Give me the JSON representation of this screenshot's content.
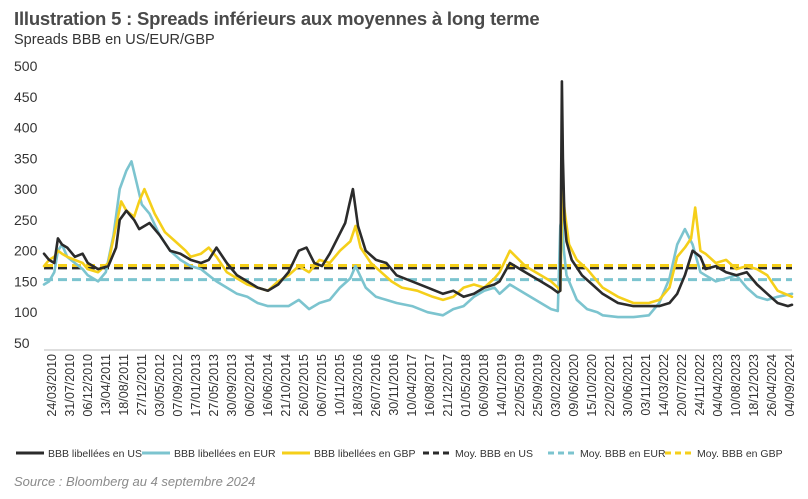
{
  "header": {
    "title": "Illustration 5 : Spreads inférieurs aux moyennes à long terme",
    "subtitle": "Spreads BBB en US/EUR/GBP"
  },
  "footer": {
    "source": "Source : Bloomberg au 4 septembre 2024"
  },
  "colors": {
    "us": "#2b2b2b",
    "eur": "#7cc4cf",
    "gbp": "#f5cf1a",
    "axis": "#888888"
  },
  "chart_data": {
    "type": "line",
    "title": "Illustration 5 : Spreads inférieurs aux moyennes à long terme",
    "subtitle": "Spreads BBB en US/EUR/GBP",
    "xlabel": "",
    "ylabel": "",
    "ylim": [
      50,
      500
    ],
    "y_ticks": [
      50,
      100,
      150,
      200,
      250,
      300,
      350,
      400,
      450,
      500
    ],
    "grid": false,
    "legend_position": "bottom",
    "x_start": 2010.15,
    "x_end": 2024.68,
    "x_tick_labels": [
      "24/03/2010",
      "31/07/2010",
      "06/12/2010",
      "13/04/2011",
      "18/08/2011",
      "27/12/2011",
      "03/05/2012",
      "07/09/2012",
      "17/01/2013",
      "27/05/2013",
      "30/09/2013",
      "06/02/2014",
      "16/06/2014",
      "21/10/2014",
      "26/02/2015",
      "06/07/2015",
      "10/11/2015",
      "18/03/2016",
      "26/07/2016",
      "30/11/2016",
      "10/04/2017",
      "16/08/2017",
      "21/12/2017",
      "01/05/2018",
      "06/09/2018",
      "14/01/2019",
      "22/05/2019",
      "25/09/2019",
      "03/02/2020",
      "09/06/2020",
      "15/10/2020",
      "22/02/2021",
      "30/06/2021",
      "03/11/2021",
      "14/03/2022",
      "20/07/2022",
      "24/11/2022",
      "04/04/2023",
      "10/08/2023",
      "18/12/2023",
      "26/04/2024",
      "04/09/2024"
    ],
    "series": [
      {
        "name": "BBB libellées en US",
        "style": "solid",
        "color": "#2b2b2b",
        "x": [
          2010.15,
          2010.25,
          2010.35,
          2010.42,
          2010.5,
          2010.6,
          2010.75,
          2010.9,
          2011.0,
          2011.2,
          2011.4,
          2011.55,
          2011.62,
          2011.75,
          2011.9,
          2012.0,
          2012.2,
          2012.4,
          2012.6,
          2012.8,
          2013.0,
          2013.2,
          2013.35,
          2013.5,
          2013.7,
          2013.9,
          2014.1,
          2014.3,
          2014.5,
          2014.7,
          2014.9,
          2015.1,
          2015.25,
          2015.4,
          2015.55,
          2015.7,
          2015.85,
          2016.0,
          2016.08,
          2016.15,
          2016.25,
          2016.4,
          2016.6,
          2016.8,
          2017.0,
          2017.3,
          2017.6,
          2017.9,
          2018.1,
          2018.3,
          2018.5,
          2018.7,
          2018.9,
          2019.0,
          2019.2,
          2019.5,
          2019.8,
          2020.0,
          2020.13,
          2020.18,
          2020.21,
          2020.23,
          2020.26,
          2020.3,
          2020.4,
          2020.6,
          2020.8,
          2021.0,
          2021.3,
          2021.6,
          2021.9,
          2022.1,
          2022.3,
          2022.45,
          2022.6,
          2022.75,
          2022.9,
          2023.0,
          2023.2,
          2023.4,
          2023.6,
          2023.8,
          2024.0,
          2024.2,
          2024.4,
          2024.6,
          2024.68
        ],
        "y": [
          195,
          185,
          180,
          220,
          210,
          205,
          190,
          195,
          180,
          170,
          175,
          205,
          250,
          265,
          250,
          235,
          245,
          225,
          200,
          195,
          185,
          180,
          185,
          205,
          180,
          160,
          150,
          140,
          135,
          145,
          165,
          200,
          205,
          180,
          175,
          195,
          220,
          245,
          275,
          300,
          240,
          200,
          185,
          180,
          160,
          150,
          140,
          130,
          135,
          125,
          130,
          140,
          145,
          150,
          180,
          165,
          150,
          140,
          132,
          135,
          475,
          350,
          250,
          215,
          185,
          160,
          145,
          130,
          115,
          110,
          110,
          110,
          115,
          130,
          160,
          200,
          190,
          170,
          175,
          165,
          160,
          165,
          145,
          130,
          115,
          110,
          112
        ]
      },
      {
        "name": "BBB libellées en EUR",
        "style": "solid",
        "color": "#7cc4cf",
        "x": [
          2010.15,
          2010.25,
          2010.35,
          2010.42,
          2010.5,
          2010.6,
          2010.75,
          2010.9,
          2011.0,
          2011.2,
          2011.35,
          2011.5,
          2011.62,
          2011.75,
          2011.85,
          2011.95,
          2012.05,
          2012.2,
          2012.4,
          2012.6,
          2012.8,
          2013.0,
          2013.2,
          2013.35,
          2013.5,
          2013.7,
          2013.9,
          2014.1,
          2014.3,
          2014.5,
          2014.7,
          2014.9,
          2015.1,
          2015.3,
          2015.5,
          2015.7,
          2015.9,
          2016.1,
          2016.2,
          2016.4,
          2016.6,
          2016.8,
          2017.0,
          2017.3,
          2017.6,
          2017.9,
          2018.1,
          2018.3,
          2018.5,
          2018.7,
          2018.9,
          2019.0,
          2019.2,
          2019.5,
          2019.8,
          2020.0,
          2020.13,
          2020.18,
          2020.21,
          2020.25,
          2020.3,
          2020.5,
          2020.7,
          2020.9,
          2021.0,
          2021.3,
          2021.6,
          2021.9,
          2022.1,
          2022.3,
          2022.45,
          2022.6,
          2022.75,
          2022.9,
          2023.0,
          2023.2,
          2023.4,
          2023.6,
          2023.8,
          2024.0,
          2024.2,
          2024.4,
          2024.68
        ],
        "y": [
          145,
          150,
          165,
          200,
          210,
          190,
          180,
          170,
          160,
          150,
          165,
          225,
          300,
          330,
          345,
          310,
          275,
          260,
          225,
          200,
          185,
          175,
          170,
          160,
          150,
          140,
          130,
          125,
          115,
          110,
          110,
          110,
          120,
          105,
          115,
          120,
          140,
          155,
          175,
          140,
          125,
          120,
          115,
          110,
          100,
          95,
          105,
          110,
          125,
          135,
          140,
          130,
          145,
          130,
          115,
          105,
          102,
          240,
          255,
          200,
          160,
          120,
          105,
          100,
          95,
          92,
          92,
          95,
          115,
          155,
          210,
          235,
          210,
          165,
          160,
          150,
          155,
          160,
          140,
          125,
          120,
          125,
          130
        ]
      },
      {
        "name": "BBB libellées en GBP",
        "style": "solid",
        "color": "#f5cf1a",
        "x": [
          2010.15,
          2010.25,
          2010.35,
          2010.42,
          2010.5,
          2010.6,
          2010.75,
          2010.9,
          2011.0,
          2011.2,
          2011.4,
          2011.55,
          2011.65,
          2011.75,
          2011.9,
          2012.0,
          2012.1,
          2012.3,
          2012.5,
          2012.7,
          2012.9,
          2013.0,
          2013.2,
          2013.35,
          2013.5,
          2013.7,
          2013.9,
          2014.1,
          2014.3,
          2014.5,
          2014.7,
          2014.9,
          2015.1,
          2015.3,
          2015.5,
          2015.7,
          2015.9,
          2016.1,
          2016.2,
          2016.3,
          2016.5,
          2016.7,
          2016.9,
          2017.1,
          2017.4,
          2017.7,
          2017.9,
          2018.1,
          2018.3,
          2018.5,
          2018.7,
          2018.9,
          2019.0,
          2019.2,
          2019.5,
          2019.8,
          2020.0,
          2020.13,
          2020.18,
          2020.22,
          2020.27,
          2020.35,
          2020.5,
          2020.7,
          2020.9,
          2021.0,
          2021.3,
          2021.6,
          2021.9,
          2022.1,
          2022.3,
          2022.45,
          2022.6,
          2022.72,
          2022.8,
          2022.9,
          2023.0,
          2023.2,
          2023.4,
          2023.6,
          2023.8,
          2024.0,
          2024.2,
          2024.4,
          2024.68
        ],
        "y": [
          175,
          185,
          190,
          200,
          195,
          190,
          185,
          180,
          170,
          165,
          180,
          240,
          280,
          265,
          255,
          280,
          300,
          260,
          230,
          215,
          200,
          190,
          195,
          205,
          190,
          165,
          155,
          145,
          140,
          135,
          150,
          160,
          175,
          165,
          185,
          180,
          200,
          215,
          240,
          205,
          180,
          165,
          150,
          140,
          135,
          125,
          120,
          125,
          140,
          145,
          140,
          155,
          165,
          200,
          175,
          160,
          150,
          140,
          135,
          300,
          260,
          210,
          185,
          170,
          150,
          140,
          125,
          115,
          115,
          120,
          140,
          190,
          205,
          220,
          270,
          200,
          195,
          180,
          185,
          170,
          175,
          170,
          160,
          135,
          125
        ]
      },
      {
        "name": "Moy. BBB en US",
        "style": "dash",
        "color": "#2b2b2b",
        "constant": 172
      },
      {
        "name": "Moy. BBB en EUR",
        "style": "dash",
        "color": "#7cc4cf",
        "constant": 153
      },
      {
        "name": "Moy. BBB en GBP",
        "style": "dash",
        "color": "#f5cf1a",
        "constant": 176
      }
    ]
  }
}
